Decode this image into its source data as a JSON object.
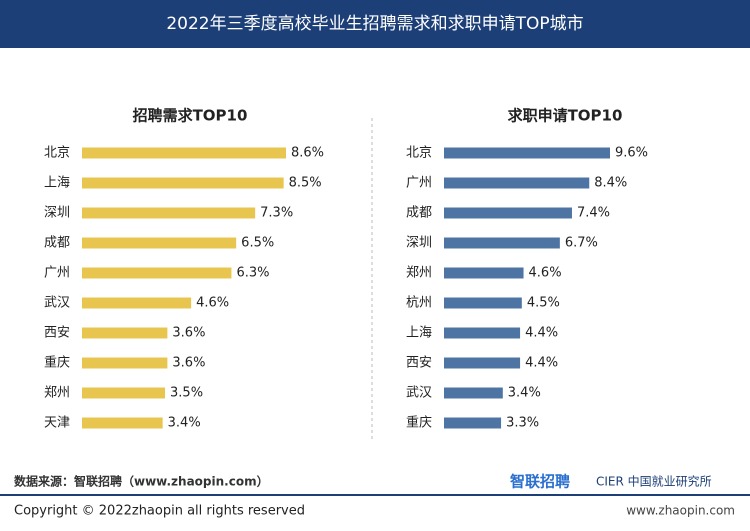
{
  "header": {
    "title": "2022年三季度高校毕业生招聘需求和求职申请TOP城市"
  },
  "chart_data": [
    {
      "type": "hbar",
      "title": "招聘需求TOP10",
      "color": "#e8c54f",
      "categories": [
        "北京",
        "上海",
        "深圳",
        "成都",
        "广州",
        "武汉",
        "西安",
        "重庆",
        "郑州",
        "天津"
      ],
      "values": [
        8.6,
        8.5,
        7.3,
        6.5,
        6.3,
        4.6,
        3.6,
        3.6,
        3.5,
        3.4
      ],
      "value_labels": [
        "8.6%",
        "8.5%",
        "7.3%",
        "6.5%",
        "6.3%",
        "4.6%",
        "3.6%",
        "3.6%",
        "3.5%",
        "3.4%"
      ]
    },
    {
      "type": "hbar",
      "title": "求职申请TOP10",
      "color": "#4e74a3",
      "categories": [
        "北京",
        "广州",
        "成都",
        "深圳",
        "郑州",
        "杭州",
        "上海",
        "西安",
        "武汉",
        "重庆"
      ],
      "values": [
        9.6,
        8.4,
        7.4,
        6.7,
        4.6,
        4.5,
        4.4,
        4.4,
        3.4,
        3.3
      ],
      "value_labels": [
        "9.6%",
        "8.4%",
        "7.4%",
        "6.7%",
        "4.6%",
        "4.5%",
        "4.4%",
        "4.4%",
        "3.4%",
        "3.3%"
      ]
    }
  ],
  "footer": {
    "source": "数据来源：智联招聘（www.zhaopin.com）",
    "logo": "智联招聘",
    "logo_sub": "CIER 中国就业研究所",
    "copyright": "Copyright ©  2022zhaopin all rights reserved",
    "site": "www.zhaopin.com"
  }
}
